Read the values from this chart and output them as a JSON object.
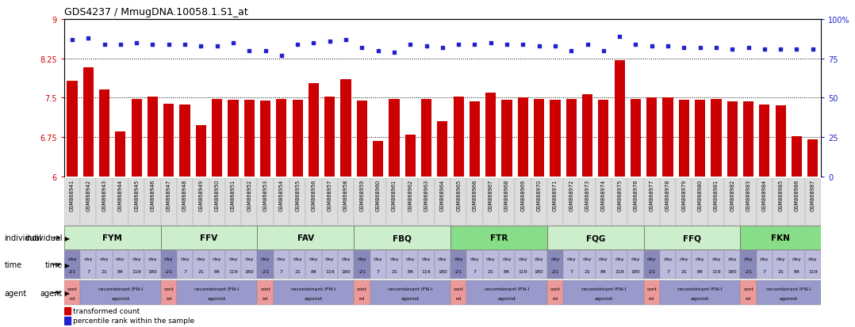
{
  "title": "GDS4237 / MmugDNA.10058.1.S1_at",
  "samples": [
    "GSM868941",
    "GSM868942",
    "GSM868943",
    "GSM868944",
    "GSM868945",
    "GSM868946",
    "GSM868947",
    "GSM868948",
    "GSM868949",
    "GSM868950",
    "GSM868951",
    "GSM868952",
    "GSM868953",
    "GSM868954",
    "GSM868955",
    "GSM868956",
    "GSM868957",
    "GSM868958",
    "GSM868959",
    "GSM868960",
    "GSM868961",
    "GSM868962",
    "GSM868963",
    "GSM868964",
    "GSM868965",
    "GSM868966",
    "GSM868967",
    "GSM868968",
    "GSM868969",
    "GSM868970",
    "GSM868971",
    "GSM868972",
    "GSM868973",
    "GSM868974",
    "GSM868975",
    "GSM868976",
    "GSM868977",
    "GSM868978",
    "GSM868979",
    "GSM868980",
    "GSM868981",
    "GSM868982",
    "GSM868983",
    "GSM868984",
    "GSM868985",
    "GSM868986",
    "GSM868987"
  ],
  "bar_values": [
    7.82,
    8.08,
    7.65,
    6.85,
    7.48,
    7.52,
    7.38,
    7.37,
    6.97,
    7.47,
    7.46,
    7.46,
    7.44,
    7.47,
    7.46,
    7.78,
    7.52,
    7.85,
    7.44,
    6.68,
    7.47,
    6.8,
    7.47,
    7.05,
    7.52,
    7.42,
    7.6,
    7.46,
    7.5,
    7.47,
    7.46,
    7.47,
    7.56,
    7.46,
    8.21,
    7.47,
    7.5,
    7.5,
    7.46,
    7.46,
    7.47,
    7.42,
    7.42,
    7.36,
    7.35,
    6.76,
    6.7
  ],
  "percentile_values": [
    87,
    88,
    84,
    84,
    85,
    84,
    84,
    84,
    83,
    83,
    85,
    80,
    80,
    77,
    84,
    85,
    86,
    87,
    82,
    80,
    79,
    84,
    83,
    82,
    84,
    84,
    85,
    84,
    84,
    83,
    83,
    80,
    84,
    80,
    89,
    84,
    83,
    83,
    82,
    82,
    82,
    81,
    82,
    81,
    81,
    81,
    81
  ],
  "ylim_left": [
    6,
    9
  ],
  "ylim_right": [
    0,
    100
  ],
  "yticks_left": [
    6,
    6.75,
    7.5,
    8.25,
    9
  ],
  "yticks_right": [
    0,
    25,
    50,
    75,
    100
  ],
  "bar_color": "#cc0000",
  "dot_color": "#2222cc",
  "groups": [
    {
      "name": "FYM",
      "start": 0,
      "end": 5,
      "color": "#cceecc"
    },
    {
      "name": "FFV",
      "start": 6,
      "end": 11,
      "color": "#cceecc"
    },
    {
      "name": "FAV",
      "start": 12,
      "end": 17,
      "color": "#cceecc"
    },
    {
      "name": "FBQ",
      "start": 18,
      "end": 23,
      "color": "#cceecc"
    },
    {
      "name": "FTR",
      "start": 24,
      "end": 29,
      "color": "#88dd88"
    },
    {
      "name": "FQG",
      "start": 30,
      "end": 35,
      "color": "#cceecc"
    },
    {
      "name": "FFQ",
      "start": 36,
      "end": 41,
      "color": "#cceecc"
    },
    {
      "name": "FKN",
      "start": 42,
      "end": 46,
      "color": "#88dd88"
    }
  ],
  "time_day_labels": [
    "-21",
    "7",
    "21",
    "84",
    "119",
    "180"
  ],
  "agent_control_color": "#ee9999",
  "agent_agonist_color": "#9999cc",
  "left_axis_color": "#cc0000",
  "right_axis_color": "#2222cc",
  "legend_bar_label": "transformed count",
  "legend_dot_label": "percentile rank within the sample"
}
